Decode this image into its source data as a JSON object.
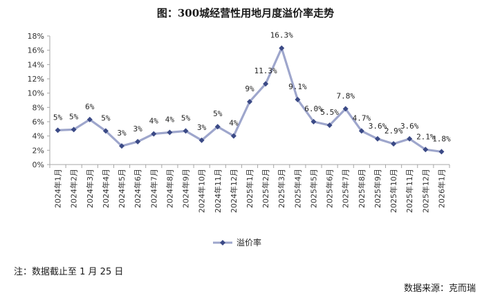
{
  "title": "图：300城经营性用地月度溢价率走势",
  "note": "注：数据截止至 1 月 25 日",
  "source": "数据来源：克而瑞",
  "colors": {
    "line": "#9ea6cc",
    "marker": "#3b4a86"
  },
  "chart_data": {
    "type": "line",
    "title": "图：300城经营性用地月度溢价率走势",
    "xlabel": "",
    "ylabel": "",
    "ylim": [
      0,
      18
    ],
    "yticks": [
      "0%",
      "2%",
      "4%",
      "6%",
      "8%",
      "10%",
      "12%",
      "14%",
      "16%",
      "18%"
    ],
    "grid": false,
    "legend": "bottom",
    "categories": [
      "2024年1月",
      "2024年2月",
      "2024年3月",
      "2024年4月",
      "2024年5月",
      "2024年6月",
      "2024年7月",
      "2024年8月",
      "2024年9月",
      "2024年10月",
      "2024年11月",
      "2024年12月",
      "2025年1月",
      "2025年2月",
      "2025年3月",
      "2025年4月",
      "2025年5月",
      "2025年6月",
      "2025年7月",
      "2025年8月",
      "2025年9月",
      "2025年10月",
      "2025年11月",
      "2025年12月",
      "2026年1月"
    ],
    "series": [
      {
        "name": "溢价率",
        "values": [
          4.8,
          4.9,
          6.3,
          4.7,
          2.6,
          3.2,
          4.3,
          4.5,
          4.7,
          3.4,
          5.3,
          4.0,
          8.8,
          11.3,
          16.3,
          9.1,
          6.0,
          5.5,
          7.8,
          4.7,
          3.6,
          2.9,
          3.6,
          2.1,
          1.8
        ],
        "labels": [
          "5%",
          "5%",
          "6%",
          "5%",
          "3%",
          "3%",
          "4%",
          "4%",
          "5%",
          "3%",
          "5%",
          "4%",
          "9%",
          "11.3%",
          "16.3%",
          "9.1%",
          "6.0%",
          "5.5%",
          "7.8%",
          "4.7%",
          "3.6%",
          "2.9%",
          "3.6%",
          "2.1%",
          "1.8%"
        ]
      }
    ]
  }
}
